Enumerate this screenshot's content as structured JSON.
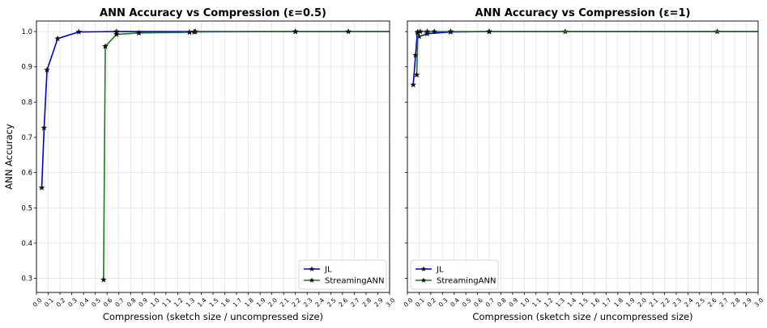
{
  "chart_data": [
    {
      "type": "line",
      "title": "ANN Accuracy vs Compression (ε=0.5)",
      "xlabel": "Compression (sketch size / uncompressed size)",
      "ylabel": "ANN Accuracy",
      "xlim": [
        0.0,
        3.0
      ],
      "ylim": [
        0.26,
        1.03
      ],
      "x_ticks": [
        "0.0",
        "0.1",
        "0.2",
        "0.3",
        "0.4",
        "0.5",
        "0.6",
        "0.7",
        "0.8",
        "0.9",
        "1.0",
        "1.1",
        "1.2",
        "1.3",
        "1.4",
        "1.5",
        "1.6",
        "1.7",
        "1.8",
        "1.9",
        "2.0",
        "2.1",
        "2.2",
        "2.3",
        "2.4",
        "2.5",
        "2.6",
        "2.7",
        "2.8",
        "2.9",
        "3.0"
      ],
      "y_ticks": [
        "0.3",
        "0.4",
        "0.5",
        "0.6",
        "0.7",
        "0.8",
        "0.9",
        "1.0"
      ],
      "grid": true,
      "legend": "lower-right",
      "series": [
        {
          "name": "JL",
          "color": "#0000cc",
          "marker": "star",
          "points": [
            [
              0.045,
              0.557
            ],
            [
              0.065,
              0.727
            ],
            [
              0.09,
              0.891
            ],
            [
              0.18,
              0.98
            ],
            [
              0.36,
              0.999
            ],
            [
              0.68,
              1.0
            ],
            [
              1.35,
              1.0
            ],
            [
              2.2,
              1.0
            ],
            [
              3.0,
              1.0
            ]
          ]
        },
        {
          "name": "StreamingANN",
          "color": "#1f7a1f",
          "marker": "star",
          "points": [
            [
              0.57,
              0.296
            ],
            [
              0.585,
              0.958
            ],
            [
              0.68,
              0.992
            ],
            [
              0.87,
              0.996
            ],
            [
              1.3,
              0.998
            ],
            [
              1.34,
              0.999
            ],
            [
              2.2,
              1.0
            ],
            [
              2.65,
              1.0
            ],
            [
              3.0,
              1.0
            ]
          ]
        }
      ]
    },
    {
      "type": "line",
      "title": "ANN Accuracy vs Compression (ε=1)",
      "xlabel": "Compression (sketch size / uncompressed size)",
      "ylabel": "",
      "xlim": [
        0.0,
        3.0
      ],
      "ylim": [
        0.26,
        1.03
      ],
      "x_ticks": [
        "0.0",
        "0.1",
        "0.2",
        "0.3",
        "0.4",
        "0.5",
        "0.6",
        "0.7",
        "0.8",
        "0.9",
        "1.0",
        "1.1",
        "1.2",
        "1.3",
        "1.4",
        "1.5",
        "1.6",
        "1.7",
        "1.8",
        "1.9",
        "2.0",
        "2.1",
        "2.2",
        "2.3",
        "2.4",
        "2.5",
        "2.6",
        "2.7",
        "2.8",
        "2.9",
        "3.0"
      ],
      "y_ticks": [
        "0.3",
        "0.4",
        "0.5",
        "0.6",
        "0.7",
        "0.8",
        "0.9",
        "1.0"
      ],
      "grid": true,
      "legend": "lower-left",
      "series": [
        {
          "name": "JL",
          "color": "#0000cc",
          "marker": "star",
          "points": [
            [
              0.05,
              0.849
            ],
            [
              0.07,
              0.933
            ],
            [
              0.085,
              0.998
            ],
            [
              0.1,
              0.986
            ],
            [
              0.17,
              0.994
            ],
            [
              0.37,
              0.999
            ],
            [
              0.7,
              1.0
            ],
            [
              1.35,
              1.0
            ],
            [
              2.65,
              1.0
            ],
            [
              3.0,
              1.0
            ]
          ]
        },
        {
          "name": "StreamingANN",
          "color": "#1f7a1f",
          "marker": "star",
          "points": [
            [
              0.08,
              0.877
            ],
            [
              0.09,
              0.998
            ],
            [
              0.11,
              1.0
            ],
            [
              0.17,
              1.0
            ],
            [
              0.23,
              1.0
            ],
            [
              0.37,
              1.0
            ],
            [
              0.7,
              1.0
            ],
            [
              3.0,
              1.0
            ]
          ]
        }
      ]
    }
  ]
}
